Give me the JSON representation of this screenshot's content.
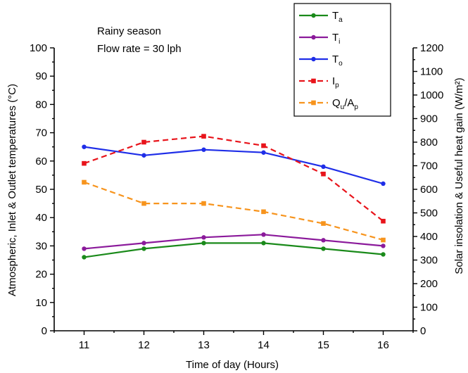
{
  "chart_data": {
    "type": "line",
    "annotations": [
      "Rainy season",
      "Flow rate = 30 lph"
    ],
    "xlabel": "Time of day (Hours)",
    "ylabel_left": "Atmospheric, Inlet & Outlet temperatures (°C)",
    "ylabel_right": "Solar insolation & Useful heat gain (W/m²)",
    "x": [
      11,
      12,
      13,
      14,
      15,
      16
    ],
    "xlim": [
      10.5,
      16.5
    ],
    "x_ticks": [
      "11",
      "12",
      "13",
      "14",
      "15",
      "16"
    ],
    "ylim_left": [
      0,
      100
    ],
    "y_ticks_left": [
      "0",
      "10",
      "20",
      "30",
      "40",
      "50",
      "60",
      "70",
      "80",
      "90",
      "100"
    ],
    "ylim_right": [
      0,
      1200
    ],
    "y_ticks_right": [
      "0",
      "100",
      "200",
      "300",
      "400",
      "500",
      "600",
      "700",
      "800",
      "900",
      "1000",
      "1100",
      "1200"
    ],
    "grid": false,
    "legend_position": "top-right",
    "series": [
      {
        "name": "Ta",
        "label_main": "T",
        "label_sub": "a",
        "axis": "left",
        "color": "#1a8a1a",
        "dash": "solid",
        "marker": "circle",
        "values": [
          26,
          29,
          31,
          31,
          29,
          27
        ]
      },
      {
        "name": "Ti",
        "label_main": "T",
        "label_sub": "i",
        "axis": "left",
        "color": "#8b1a9b",
        "dash": "solid",
        "marker": "circle",
        "values": [
          29,
          31,
          33,
          34,
          32,
          30
        ]
      },
      {
        "name": "To",
        "label_main": "T",
        "label_sub": "o",
        "axis": "left",
        "color": "#1f2ee8",
        "dash": "solid",
        "marker": "circle",
        "values": [
          65,
          62,
          64,
          63,
          58,
          52
        ]
      },
      {
        "name": "Ip",
        "label_main": "I",
        "label_sub": "p",
        "axis": "right",
        "color": "#e8141b",
        "dash": "dashed",
        "marker": "square",
        "values": [
          710,
          800,
          825,
          785,
          665,
          465
        ]
      },
      {
        "name": "Qu/Ap",
        "label_main": "Q",
        "label_sub": "u",
        "label_main2": "/A",
        "label_sub2": "p",
        "axis": "right",
        "color": "#f7941d",
        "dash": "dashed",
        "marker": "square",
        "values": [
          630,
          540,
          540,
          505,
          455,
          385
        ]
      }
    ]
  }
}
